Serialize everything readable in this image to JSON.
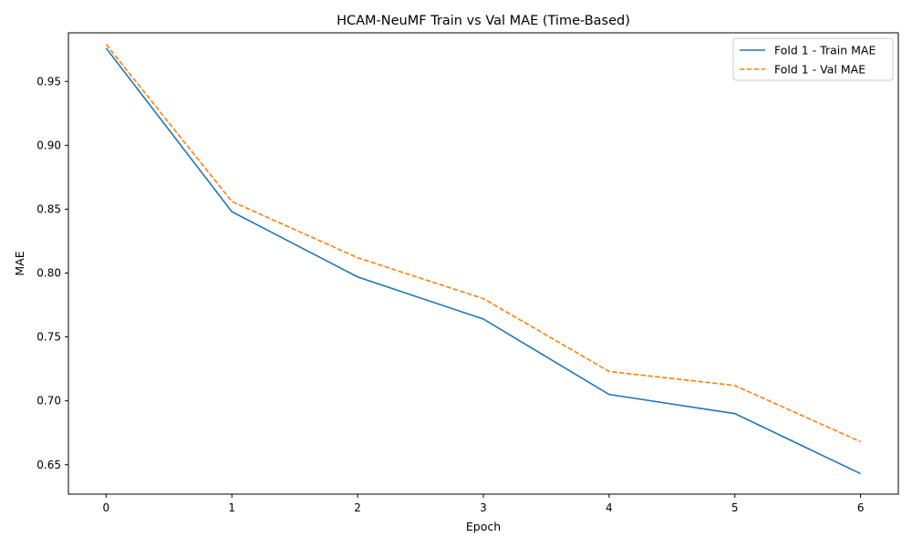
{
  "chart_data": {
    "type": "line",
    "title": "HCAM-NeuMF Train vs Val MAE (Time-Based)",
    "xlabel": "Epoch",
    "ylabel": "MAE",
    "x": [
      0,
      1,
      2,
      3,
      4,
      5,
      6
    ],
    "xlim": [
      -0.3,
      6.3
    ],
    "ylim": [
      0.627,
      0.988
    ],
    "xticks": [
      0,
      1,
      2,
      3,
      4,
      5,
      6
    ],
    "yticks": [
      0.65,
      0.7,
      0.75,
      0.8,
      0.85,
      0.9,
      0.95
    ],
    "ytick_labels": [
      "0.65",
      "0.70",
      "0.75",
      "0.80",
      "0.85",
      "0.90",
      "0.95"
    ],
    "grid": false,
    "legend_position": "top-right",
    "series": [
      {
        "name": "Fold 1 - Train MAE",
        "values": [
          0.976,
          0.848,
          0.797,
          0.764,
          0.705,
          0.69,
          0.643
        ],
        "color": "#1f77b4",
        "style": "solid"
      },
      {
        "name": "Fold 1 - Val MAE",
        "values": [
          0.979,
          0.856,
          0.812,
          0.78,
          0.723,
          0.712,
          0.668
        ],
        "color": "#ff7f0e",
        "style": "dashed"
      }
    ]
  }
}
